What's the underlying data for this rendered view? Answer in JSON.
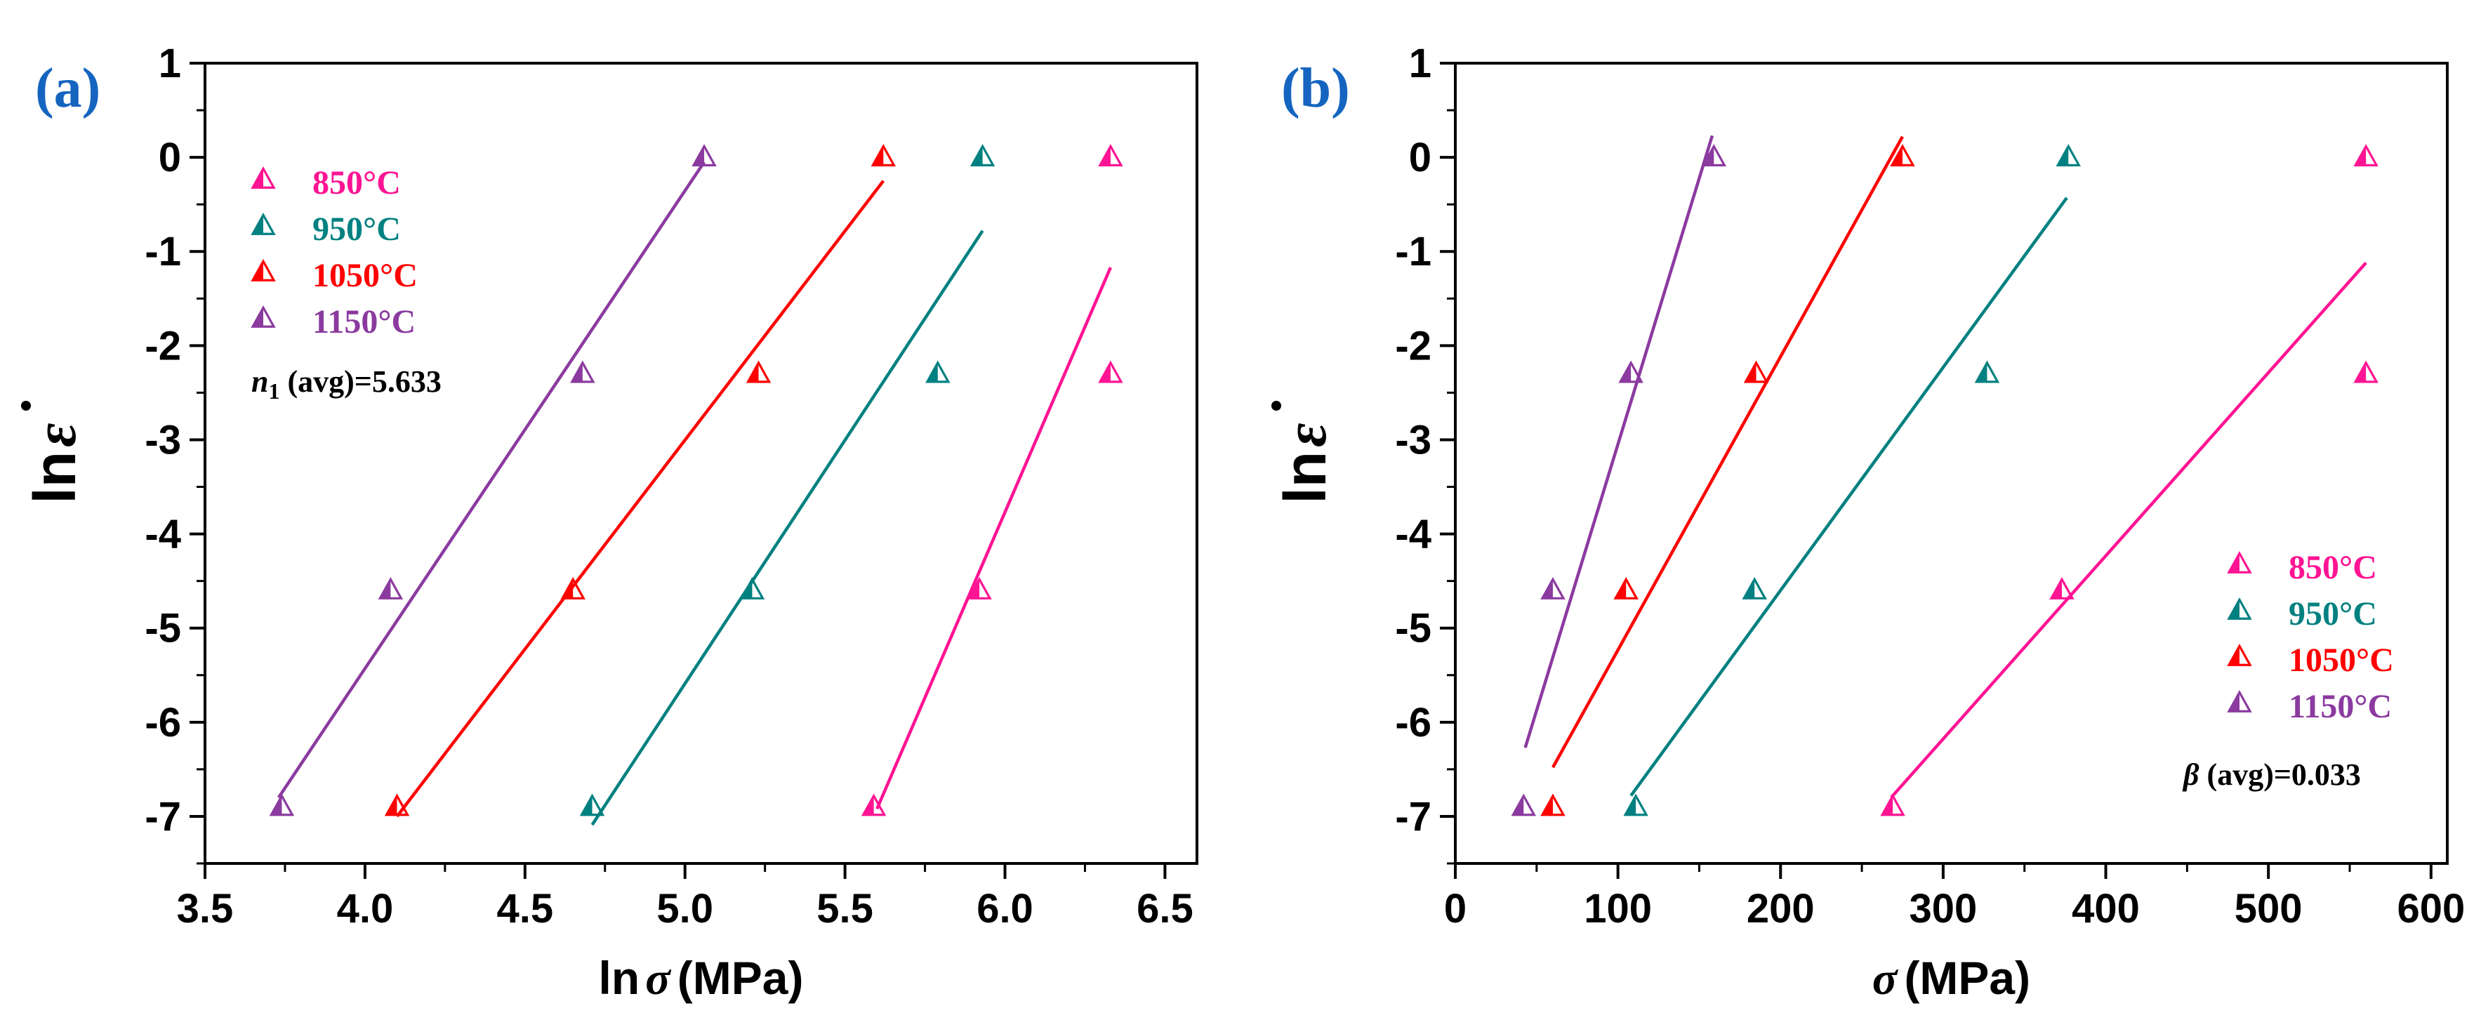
{
  "chart_data": [
    {
      "type": "scatter",
      "panel_label": "(a)",
      "panel_label_color": "#1565c0",
      "xlabel_prefix": "ln",
      "xlabel_symbol": "σ",
      "xlabel_unit": "(MPa)",
      "ylabel_prefix": "ln",
      "ylabel_symbol": "ε",
      "xlim": [
        3.5,
        6.6
      ],
      "ylim": [
        -7.5,
        1
      ],
      "xticks": [
        "3.5",
        "4.0",
        "4.5",
        "5.0",
        "5.5",
        "6.0",
        "6.5"
      ],
      "yticks": [
        "1",
        "0",
        "-1",
        "-2",
        "-3",
        "-4",
        "-5",
        "-6",
        "-7"
      ],
      "legend_position": "top-left",
      "annotation": {
        "symbol": "n",
        "subscript": "1",
        "text": " (avg)=5.633"
      },
      "series": [
        {
          "name": "850°C",
          "color": "#ff1493",
          "x": [
            6.33,
            6.33,
            5.92,
            5.59
          ],
          "y": [
            0,
            -2.3,
            -4.6,
            -6.9
          ],
          "fit": {
            "x": [
              5.6,
              6.33
            ],
            "y": [
              -6.92,
              -1.17
            ]
          }
        },
        {
          "name": "950°C",
          "color": "#008080",
          "x": [
            5.93,
            5.79,
            5.21,
            4.71
          ],
          "y": [
            0,
            -2.3,
            -4.6,
            -6.9
          ],
          "fit": {
            "x": [
              4.71,
              5.93
            ],
            "y": [
              -7.09,
              -0.78
            ]
          }
        },
        {
          "name": "1050°C",
          "color": "#ff0000",
          "x": [
            5.62,
            5.23,
            4.65,
            4.1
          ],
          "y": [
            0,
            -2.3,
            -4.6,
            -6.9
          ],
          "fit": {
            "x": [
              4.1,
              5.62
            ],
            "y": [
              -7.0,
              -0.25
            ]
          }
        },
        {
          "name": "1150°C",
          "color": "#8b3a9f",
          "x": [
            5.06,
            4.68,
            4.08,
            3.74
          ],
          "y": [
            0,
            -2.3,
            -4.6,
            -6.9
          ],
          "fit": {
            "x": [
              3.73,
              5.06
            ],
            "y": [
              -6.8,
              -0.05
            ]
          }
        }
      ]
    },
    {
      "type": "scatter",
      "panel_label": "(b)",
      "panel_label_color": "#1565c0",
      "xlabel_prefix": "",
      "xlabel_symbol": "σ",
      "xlabel_unit": "(MPa)",
      "ylabel_prefix": "ln",
      "ylabel_symbol": "ε",
      "xlim": [
        0,
        610
      ],
      "ylim": [
        -7.5,
        1
      ],
      "xticks": [
        "0",
        "100",
        "200",
        "300",
        "400",
        "500",
        "600"
      ],
      "yticks": [
        "1",
        "0",
        "-1",
        "-2",
        "-3",
        "-4",
        "-5",
        "-6",
        "-7"
      ],
      "legend_position": "bottom-right",
      "annotation": {
        "symbol": "β",
        "subscript": "",
        "text": " (avg)=0.033"
      },
      "series": [
        {
          "name": "850°C",
          "color": "#ff1493",
          "x": [
            560,
            560,
            373,
            269
          ],
          "y": [
            0,
            -2.3,
            -4.6,
            -6.9
          ],
          "fit": {
            "x": [
              268,
              560
            ],
            "y": [
              -6.8,
              -1.12
            ]
          }
        },
        {
          "name": "950°C",
          "color": "#008080",
          "x": [
            377,
            327,
            184,
            111
          ],
          "y": [
            0,
            -2.3,
            -4.6,
            -6.9
          ],
          "fit": {
            "x": [
              108,
              376
            ],
            "y": [
              -6.78,
              -0.43
            ]
          }
        },
        {
          "name": "1050°C",
          "color": "#ff0000",
          "x": [
            275,
            185,
            105,
            60
          ],
          "y": [
            0,
            -2.3,
            -4.6,
            -6.9
          ],
          "fit": {
            "x": [
              60,
              275
            ],
            "y": [
              -6.48,
              0.22
            ]
          }
        },
        {
          "name": "1150°C",
          "color": "#8b3a9f",
          "x": [
            159,
            108,
            60,
            42
          ],
          "y": [
            0,
            -2.3,
            -4.6,
            -6.9
          ],
          "fit": {
            "x": [
              43,
              158
            ],
            "y": [
              -6.27,
              0.23
            ]
          }
        }
      ]
    }
  ]
}
